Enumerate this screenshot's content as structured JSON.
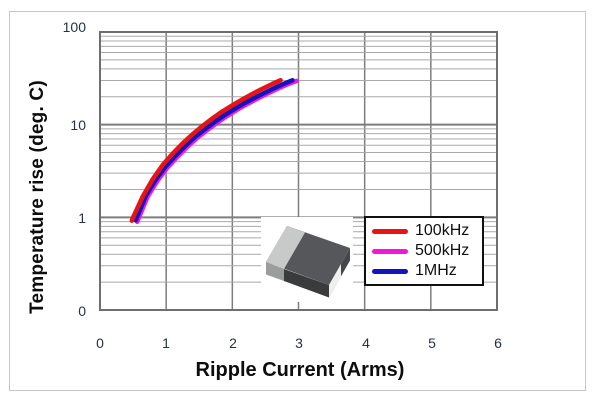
{
  "chart": {
    "y_axis_title": "Temperature rise (deg. C)",
    "x_axis_title": "Ripple Current (Arms)",
    "y_ticks": [
      "100",
      "10",
      "1",
      "0"
    ],
    "x_ticks": [
      "0",
      "1",
      "2",
      "3",
      "4",
      "5",
      "6"
    ]
  },
  "colors": {
    "grid_minor": "#a9a9a9",
    "grid_major": "#7d7d7d",
    "plot_border": "#6e6e6e",
    "tick_text": "#27314a",
    "legend_border": "#101010"
  },
  "chart_data": {
    "type": "line",
    "title": "",
    "xlabel": "Ripple Current (Arms)",
    "ylabel": "Temperature rise (deg. C)",
    "x_range": [
      0,
      6
    ],
    "y_scale": "log",
    "y_range": [
      0.1,
      100
    ],
    "y_major_gridlines": [
      10,
      1
    ],
    "grid": "on",
    "legend_position": "lower-right",
    "series": [
      {
        "name": "100kHz",
        "color": "#e81414",
        "points": [
          [
            0.48,
            0.92
          ],
          [
            0.5,
            1.0
          ],
          [
            0.65,
            1.7
          ],
          [
            0.8,
            2.6
          ],
          [
            0.95,
            3.7
          ],
          [
            1.1,
            4.9
          ],
          [
            1.25,
            6.3
          ],
          [
            1.4,
            7.9
          ],
          [
            1.55,
            9.7
          ],
          [
            1.7,
            11.7
          ],
          [
            1.85,
            13.9
          ],
          [
            2.0,
            16.2
          ],
          [
            2.15,
            18.7
          ],
          [
            2.3,
            21.4
          ],
          [
            2.45,
            24.3
          ],
          [
            2.6,
            27.4
          ],
          [
            2.73,
            30.2
          ]
        ]
      },
      {
        "name": "500kHz",
        "color": "#f216dd",
        "points": [
          [
            0.54,
            0.93
          ],
          [
            0.7,
            1.75
          ],
          [
            0.85,
            2.6
          ],
          [
            1.0,
            3.6
          ],
          [
            1.15,
            4.7
          ],
          [
            1.3,
            6.0
          ],
          [
            1.45,
            7.5
          ],
          [
            1.6,
            9.1
          ],
          [
            1.75,
            10.9
          ],
          [
            1.9,
            12.9
          ],
          [
            2.05,
            15.0
          ],
          [
            2.2,
            17.3
          ],
          [
            2.35,
            19.7
          ],
          [
            2.5,
            22.3
          ],
          [
            2.65,
            25.1
          ],
          [
            2.8,
            28.0
          ],
          [
            2.95,
            30.8
          ]
        ]
      },
      {
        "name": "1MHz",
        "color": "#1414bf",
        "points": [
          [
            0.54,
            0.93
          ],
          [
            0.7,
            1.75
          ],
          [
            0.85,
            2.6
          ],
          [
            1.0,
            3.6
          ],
          [
            1.15,
            4.7
          ],
          [
            1.3,
            6.0
          ],
          [
            1.45,
            7.5
          ],
          [
            1.6,
            9.1
          ],
          [
            1.75,
            10.9
          ],
          [
            1.9,
            12.9
          ],
          [
            2.05,
            15.0
          ],
          [
            2.2,
            17.3
          ],
          [
            2.35,
            19.7
          ],
          [
            2.5,
            22.3
          ],
          [
            2.65,
            25.1
          ],
          [
            2.8,
            28.0
          ],
          [
            2.91,
            30.2
          ]
        ]
      }
    ]
  }
}
